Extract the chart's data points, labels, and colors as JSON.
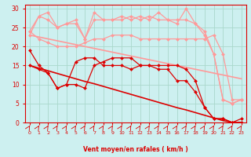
{
  "bg_color": "#cdf0f0",
  "grid_color": "#aad8cc",
  "dark_red": "#dd0000",
  "light_red": "#ff9999",
  "xlabel": "Vent moyen/en rafales ( km/h )",
  "ylim": [
    0,
    31
  ],
  "xlim": [
    -0.5,
    23.5
  ],
  "yticks": [
    0,
    5,
    10,
    15,
    20,
    25,
    30
  ],
  "xticks": [
    0,
    1,
    2,
    3,
    4,
    5,
    6,
    7,
    8,
    9,
    10,
    11,
    12,
    13,
    14,
    15,
    16,
    17,
    18,
    19,
    20,
    21,
    22,
    23
  ],
  "y_diag1": [
    15.0,
    14.3,
    13.6,
    12.9,
    12.2,
    11.5,
    10.8,
    10.2,
    9.5,
    8.8,
    8.1,
    7.4,
    6.7,
    6.0,
    5.3,
    4.6,
    3.9,
    3.3,
    2.6,
    1.9,
    1.2,
    0.5,
    0.0,
    0.0
  ],
  "y_diag2": [
    23.0,
    22.5,
    22.0,
    21.5,
    21.0,
    20.5,
    20.0,
    19.5,
    19.0,
    18.5,
    18.0,
    17.5,
    17.0,
    16.5,
    16.0,
    15.5,
    15.0,
    14.5,
    14.0,
    13.5,
    13.0,
    12.5,
    12.0,
    11.5
  ],
  "y_dark1": [
    15,
    14,
    13,
    9,
    10,
    10,
    9,
    15,
    16,
    17,
    17,
    17,
    15,
    15,
    15,
    15,
    15,
    14,
    11,
    4,
    1,
    1,
    0,
    1
  ],
  "y_dark2": [
    19,
    15,
    13,
    9,
    10,
    16,
    17,
    17,
    15,
    15,
    15,
    14,
    15,
    15,
    14,
    14,
    11,
    11,
    8,
    4,
    1,
    1,
    0,
    0
  ],
  "y_light1": [
    24,
    22,
    21,
    20,
    20,
    20,
    21,
    22,
    22,
    23,
    23,
    23,
    22,
    22,
    22,
    22,
    22,
    22,
    22,
    22,
    23,
    18,
    6,
    6
  ],
  "y_light2": [
    23,
    28,
    27,
    25,
    26,
    26,
    22,
    27,
    27,
    27,
    27,
    28,
    27,
    28,
    27,
    27,
    27,
    27,
    26,
    24,
    18,
    6,
    5,
    6
  ],
  "y_light3": [
    24,
    28,
    29,
    25,
    26,
    27,
    22,
    29,
    27,
    27,
    28,
    27,
    28,
    27,
    29,
    27,
    26,
    30,
    26,
    23,
    18,
    6,
    5,
    6
  ]
}
